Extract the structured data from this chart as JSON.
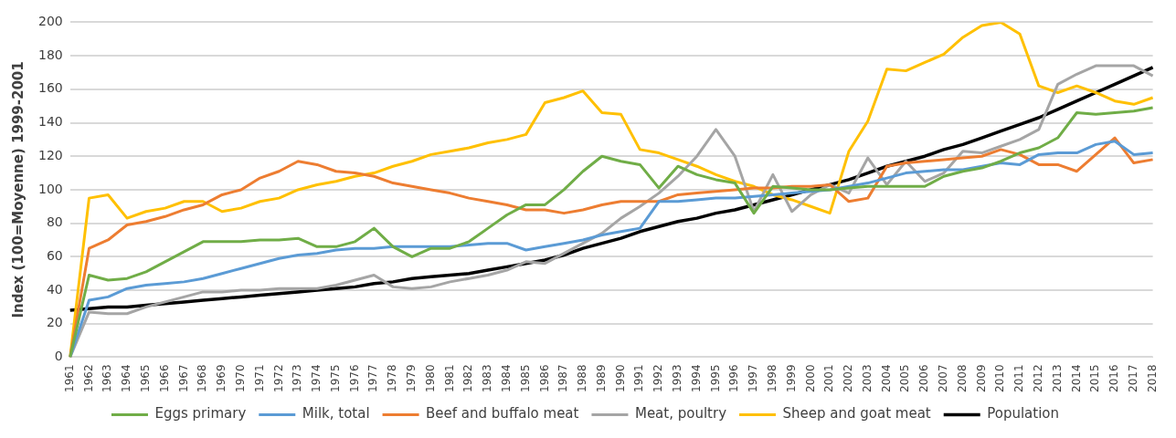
{
  "chart_data": {
    "type": "line",
    "ylabel": "Index (100=Moyenne) 1999-2001",
    "categories": [
      "1961",
      "1962",
      "1963",
      "1964",
      "1965",
      "1966",
      "1967",
      "1968",
      "1969",
      "1970",
      "1971",
      "1972",
      "1973",
      "1974",
      "1975",
      "1976",
      "1977",
      "1978",
      "1979",
      "1980",
      "1981",
      "1982",
      "1983",
      "1984",
      "1985",
      "1986",
      "1987",
      "1988",
      "1989",
      "1990",
      "1991",
      "1992",
      "1993",
      "1994",
      "1995",
      "1996",
      "1997",
      "1998",
      "1999",
      "2000",
      "2001",
      "2002",
      "2003",
      "2004",
      "2005",
      "2006",
      "2007",
      "2008",
      "2009",
      "2010",
      "2011",
      "2012",
      "2013",
      "2014",
      "2015",
      "2016",
      "2017",
      "2018"
    ],
    "series": [
      {
        "name": "Eggs primary",
        "color": "#70ad47",
        "values": [
          0,
          49,
          46,
          47,
          51,
          57,
          63,
          69,
          69,
          69,
          70,
          70,
          71,
          66,
          66,
          69,
          77,
          66,
          60,
          65,
          65,
          69,
          77,
          85,
          91,
          91,
          100,
          111,
          120,
          117,
          115,
          101,
          114,
          109,
          106,
          104,
          86,
          102,
          101,
          100,
          100,
          101,
          102,
          102,
          102,
          102,
          108,
          111,
          113,
          117,
          122,
          125,
          131,
          146,
          145,
          146,
          147,
          149
        ]
      },
      {
        "name": "Milk, total",
        "color": "#5b9bd5",
        "values": [
          0,
          34,
          36,
          41,
          43,
          44,
          45,
          47,
          50,
          53,
          56,
          59,
          61,
          62,
          64,
          65,
          65,
          66,
          66,
          66,
          66,
          67,
          68,
          68,
          64,
          66,
          68,
          70,
          73,
          75,
          77,
          93,
          93,
          94,
          95,
          95,
          96,
          97,
          98,
          99,
          100,
          102,
          104,
          107,
          110,
          111,
          112,
          112,
          114,
          116,
          115,
          121,
          122,
          122,
          127,
          129,
          121,
          122
        ]
      },
      {
        "name": "Beef and buffalo meat",
        "color": "#ed7d31",
        "values": [
          0,
          65,
          70,
          79,
          81,
          84,
          88,
          91,
          97,
          100,
          107,
          111,
          117,
          115,
          111,
          110,
          108,
          104,
          102,
          100,
          98,
          95,
          93,
          91,
          88,
          88,
          86,
          88,
          91,
          93,
          93,
          93,
          97,
          98,
          99,
          100,
          101,
          101,
          102,
          102,
          103,
          93,
          95,
          114,
          116,
          117,
          118,
          119,
          120,
          124,
          121,
          115,
          115,
          111,
          121,
          131,
          116,
          118
        ]
      },
      {
        "name": "Meat, poultry",
        "color": "#a5a5a5",
        "values": [
          0,
          27,
          26,
          26,
          30,
          33,
          36,
          39,
          39,
          40,
          40,
          41,
          41,
          41,
          43,
          46,
          49,
          42,
          41,
          42,
          45,
          47,
          49,
          52,
          57,
          56,
          62,
          68,
          74,
          83,
          90,
          98,
          108,
          120,
          136,
          120,
          87,
          109,
          87,
          97,
          103,
          98,
          119,
          103,
          117,
          105,
          110,
          123,
          122,
          126,
          130,
          136,
          163,
          169,
          174,
          174,
          174,
          168
        ]
      },
      {
        "name": "Sheep and goat meat",
        "color": "#ffc000",
        "values": [
          0,
          95,
          97,
          83,
          87,
          89,
          93,
          93,
          87,
          89,
          93,
          95,
          100,
          103,
          105,
          108,
          110,
          114,
          117,
          121,
          123,
          125,
          128,
          130,
          133,
          152,
          155,
          159,
          146,
          145,
          124,
          122,
          118,
          114,
          109,
          105,
          102,
          97,
          94,
          90,
          86,
          123,
          141,
          172,
          171,
          176,
          181,
          191,
          198,
          200,
          193,
          162,
          158,
          162,
          158,
          153,
          151,
          155
        ]
      },
      {
        "name": "Population",
        "color": "#000000",
        "values": [
          28,
          29,
          30,
          30,
          31,
          32,
          33,
          34,
          35,
          36,
          37,
          38,
          39,
          40,
          41,
          42,
          44,
          45,
          47,
          48,
          49,
          50,
          52,
          54,
          56,
          58,
          61,
          65,
          68,
          71,
          75,
          78,
          81,
          83,
          86,
          88,
          91,
          94,
          97,
          100,
          103,
          106,
          110,
          114,
          117,
          120,
          124,
          127,
          131,
          135,
          139,
          143,
          148,
          153,
          158,
          163,
          168,
          173
        ]
      }
    ],
    "ylim": [
      0,
      200
    ],
    "yticks": [
      0,
      20,
      40,
      60,
      80,
      100,
      120,
      140,
      160,
      180,
      200
    ],
    "grid": "y",
    "legend": "bottom",
    "marker": "none",
    "line_style": "solid"
  }
}
